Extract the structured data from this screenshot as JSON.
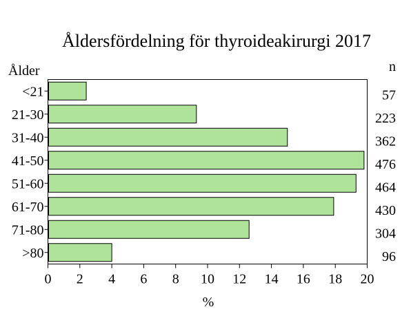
{
  "chart_data": {
    "type": "bar",
    "orientation": "horizontal",
    "title": "Åldersfördelning för thyroideakirurgi 2017",
    "ylabel": "Ålder",
    "xlabel": "%",
    "n_label": "n",
    "categories": [
      "<21",
      "21-30",
      "31-40",
      "41-50",
      "51-60",
      "61-70",
      "71-80",
      ">80"
    ],
    "values": [
      2.4,
      9.3,
      15.0,
      19.8,
      19.3,
      17.9,
      12.6,
      4.0
    ],
    "n_values": [
      "57",
      "223",
      "362",
      "476",
      "464",
      "430",
      "304",
      "96"
    ],
    "xlim": [
      0,
      20
    ],
    "xticks": [
      "0",
      "2",
      "4",
      "6",
      "8",
      "10",
      "12",
      "14",
      "16",
      "18",
      "20"
    ],
    "grid": false,
    "bar_color": "#b0e39a",
    "bar_edge_color": "#000000"
  }
}
